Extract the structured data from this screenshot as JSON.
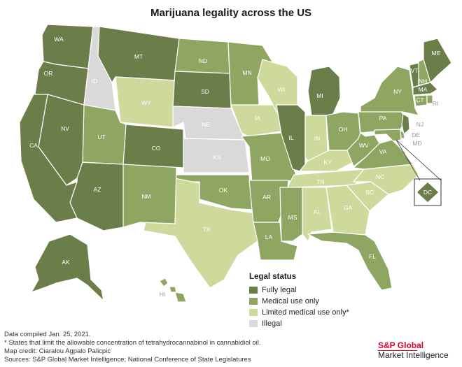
{
  "title": "Marijuana legality across the US",
  "colors": {
    "fully_legal": "#6b7d49",
    "medical_use_only": "#8fa562",
    "limited_medical_use_only": "#cdda9c",
    "illegal": "#d9d9d9",
    "stroke": "#ffffff",
    "brand_red": "#d6002a"
  },
  "legend": {
    "title": "Legal status",
    "items": [
      {
        "label": "Fully legal",
        "status": "fully_legal"
      },
      {
        "label": "Medical use only",
        "status": "medical_use_only"
      },
      {
        "label": "Limited medical use only*",
        "status": "limited_medical_use_only"
      },
      {
        "label": "Illegal",
        "status": "illegal"
      }
    ]
  },
  "states": {
    "WA": "fully_legal",
    "OR": "fully_legal",
    "CA": "fully_legal",
    "NV": "fully_legal",
    "ID": "illegal",
    "MT": "fully_legal",
    "WY": "limited_medical_use_only",
    "UT": "medical_use_only",
    "AZ": "fully_legal",
    "CO": "fully_legal",
    "NM": "medical_use_only",
    "ND": "medical_use_only",
    "SD": "fully_legal",
    "NE": "illegal",
    "KS": "illegal",
    "OK": "medical_use_only",
    "TX": "limited_medical_use_only",
    "MN": "medical_use_only",
    "IA": "limited_medical_use_only",
    "MO": "medical_use_only",
    "AR": "medical_use_only",
    "LA": "medical_use_only",
    "WI": "limited_medical_use_only",
    "IL": "fully_legal",
    "MI": "fully_legal",
    "IN": "limited_medical_use_only",
    "OH": "medical_use_only",
    "KY": "limited_medical_use_only",
    "TN": "limited_medical_use_only",
    "MS": "medical_use_only",
    "AL": "limited_medical_use_only",
    "GA": "limited_medical_use_only",
    "FL": "medical_use_only",
    "SC": "limited_medical_use_only",
    "NC": "limited_medical_use_only",
    "VA": "medical_use_only",
    "WV": "medical_use_only",
    "PA": "medical_use_only",
    "NY": "medical_use_only",
    "VT": "fully_legal",
    "NH": "medical_use_only",
    "ME": "fully_legal",
    "MA": "fully_legal",
    "RI": "medical_use_only",
    "CT": "medical_use_only",
    "NJ": "fully_legal",
    "DE": "medical_use_only",
    "MD": "medical_use_only",
    "DC": "fully_legal",
    "AK": "fully_legal",
    "HI": "medical_use_only"
  },
  "notes": [
    "Data compiled Jan. 25, 2021.",
    "* States that limit the allowable concentration of tetrahydrocannabinol in cannabidiol oil.",
    "Map credit: Ciaralou Agpalo Palicpic",
    "Sources: S&P Global Market Intelligence; National Conference of State Legislatures"
  ],
  "brand": {
    "line1": "S&P Global",
    "line2": "Market Intelligence"
  }
}
